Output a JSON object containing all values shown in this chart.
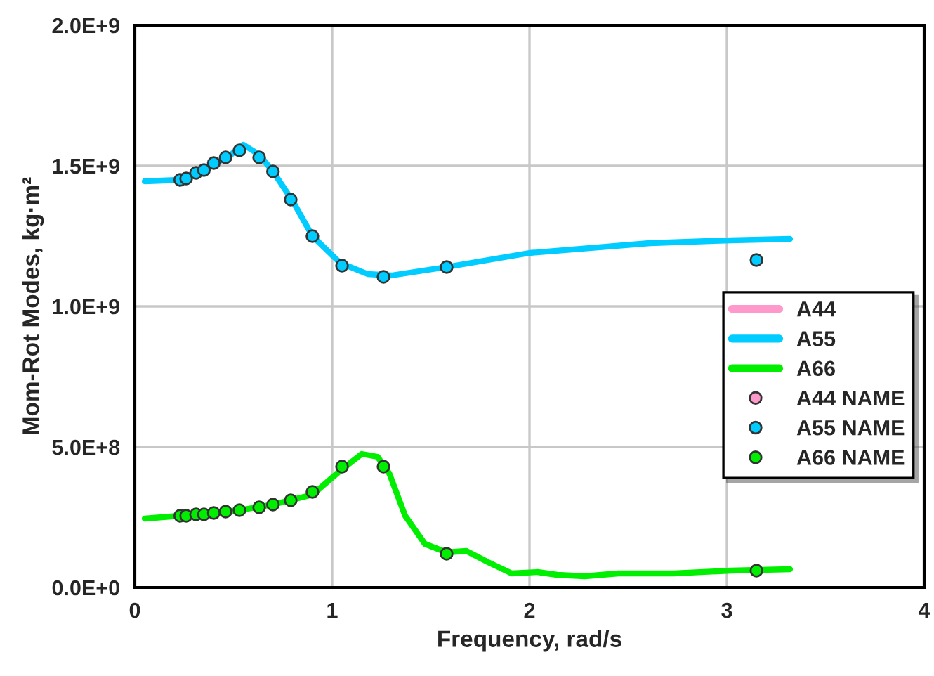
{
  "chart_data": {
    "type": "line",
    "xlabel": "Frequency, rad/s",
    "ylabel": "Mom-Rot Modes, kg·m²",
    "xlim": [
      0,
      4
    ],
    "xticks": [
      0,
      1,
      2,
      3,
      4
    ],
    "ylim": [
      0,
      2000000000
    ],
    "yticks": [
      {
        "value": 0,
        "label": "0.0E+0"
      },
      {
        "value": 500000000,
        "label": "5.0E+8"
      },
      {
        "value": 1000000000,
        "label": "1.0E+9"
      },
      {
        "value": 1500000000,
        "label": "1.5E+9"
      },
      {
        "value": 2000000000,
        "label": "2.0E+9"
      }
    ],
    "grid": true,
    "legend": "right",
    "series": [
      {
        "name": "A44",
        "color": "#ff99cc"
      },
      {
        "name": "A55",
        "color": "#00ccff",
        "x": [
          0.05,
          0.23,
          0.47,
          0.55,
          0.63,
          0.7,
          0.8,
          0.9,
          1.04,
          1.18,
          1.3,
          1.58,
          2.0,
          2.61,
          3.02,
          3.32
        ],
        "values": [
          1445000000,
          1450000000,
          1530000000,
          1575000000,
          1540000000,
          1480000000,
          1375000000,
          1250000000,
          1155000000,
          1115000000,
          1110000000,
          1140000000,
          1190000000,
          1225000000,
          1235000000,
          1240000000
        ]
      },
      {
        "name": "A66",
        "color": "#00ee00",
        "x": [
          0.05,
          0.23,
          0.53,
          0.7,
          0.9,
          1.04,
          1.15,
          1.23,
          1.29,
          1.37,
          1.47,
          1.58,
          1.68,
          1.79,
          1.91,
          2.04,
          2.14,
          2.28,
          2.45,
          2.73,
          3.02,
          3.32
        ],
        "values": [
          245000000,
          255000000,
          275000000,
          295000000,
          330000000,
          415000000,
          475000000,
          465000000,
          405000000,
          255000000,
          155000000,
          125000000,
          130000000,
          90000000,
          50000000,
          55000000,
          45000000,
          40000000,
          50000000,
          50000000,
          60000000,
          65000000
        ]
      },
      {
        "name": "A44 NAME",
        "type": "scatter",
        "color": "#ff99cc",
        "marker": "circle"
      },
      {
        "name": "A55 NAME",
        "type": "scatter",
        "color": "#00ccff",
        "marker": "circle",
        "x": [
          0.23,
          0.26,
          0.31,
          0.35,
          0.4,
          0.46,
          0.53,
          0.63,
          0.7,
          0.79,
          0.9,
          1.05,
          1.26,
          1.58,
          3.15
        ],
        "values": [
          1450000000,
          1455000000,
          1475000000,
          1485000000,
          1510000000,
          1530000000,
          1555000000,
          1530000000,
          1480000000,
          1380000000,
          1250000000,
          1145000000,
          1105000000,
          1140000000,
          1165000000
        ]
      },
      {
        "name": "A66 NAME",
        "type": "scatter",
        "color": "#00ee00",
        "marker": "circle",
        "x": [
          0.23,
          0.26,
          0.31,
          0.35,
          0.4,
          0.46,
          0.53,
          0.63,
          0.7,
          0.79,
          0.9,
          1.05,
          1.26,
          1.58,
          3.15
        ],
        "values": [
          255000000,
          255000000,
          260000000,
          260000000,
          265000000,
          270000000,
          275000000,
          285000000,
          295000000,
          310000000,
          340000000,
          430000000,
          430000000,
          120000000,
          60000000
        ]
      }
    ]
  }
}
